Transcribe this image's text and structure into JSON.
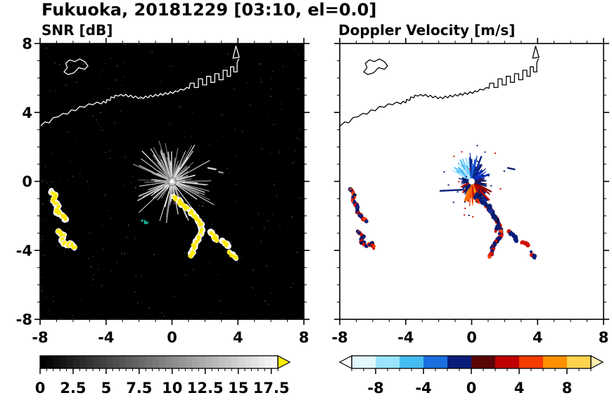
{
  "title": "Fukuoka, 20181229 [03:10, el=0.0]",
  "panels": {
    "snr": {
      "title": "SNR [dB]"
    },
    "doppler": {
      "title": "Doppler Velocity [m/s]"
    }
  },
  "axes": {
    "xlim": [
      -8,
      8
    ],
    "ylim": [
      -8,
      8
    ],
    "major_ticks": [
      -8,
      -4,
      0,
      4,
      8
    ],
    "tick_labels": [
      "-8",
      "-4",
      "0",
      "4",
      "8"
    ],
    "minor_step": 1
  },
  "map_overlay": {
    "coast_main": [
      [
        -8,
        3.2
      ],
      [
        -7.7,
        3.45
      ],
      [
        -7.45,
        3.4
      ],
      [
        -7.2,
        3.7
      ],
      [
        -6.9,
        3.75
      ],
      [
        -6.6,
        3.95
      ],
      [
        -6.35,
        3.9
      ],
      [
        -6.1,
        4.15
      ],
      [
        -5.85,
        4.1
      ],
      [
        -5.6,
        4.35
      ],
      [
        -5.3,
        4.3
      ],
      [
        -5.05,
        4.5
      ],
      [
        -4.8,
        4.45
      ],
      [
        -4.55,
        4.6
      ],
      [
        -4.3,
        4.5
      ],
      [
        -4.15,
        4.65
      ],
      [
        -4,
        4.55
      ],
      [
        -3.95,
        4.75
      ],
      [
        -3.75,
        4.7
      ],
      [
        -3.7,
        4.9
      ],
      [
        -3.5,
        4.85
      ],
      [
        -3.45,
        5
      ],
      [
        -3.25,
        4.95
      ],
      [
        -3.1,
        5.05
      ],
      [
        -2.95,
        4.95
      ],
      [
        -2.8,
        5.05
      ],
      [
        -2.65,
        4.9
      ],
      [
        -2.5,
        5
      ],
      [
        -2.35,
        4.85
      ],
      [
        -2.2,
        4.95
      ],
      [
        -2.05,
        4.8
      ],
      [
        -1.9,
        4.9
      ],
      [
        -1.75,
        4.8
      ],
      [
        -1.6,
        4.95
      ],
      [
        -1.45,
        4.85
      ],
      [
        -1.3,
        5
      ],
      [
        -1.15,
        4.9
      ],
      [
        -1,
        5.05
      ],
      [
        -0.85,
        4.95
      ],
      [
        -0.7,
        5.1
      ],
      [
        -0.55,
        5
      ],
      [
        -0.4,
        5.15
      ],
      [
        -0.25,
        5.05
      ],
      [
        -0.1,
        5.2
      ],
      [
        0.05,
        5.1
      ],
      [
        0.2,
        5.25
      ],
      [
        0.35,
        5.2
      ],
      [
        0.5,
        5.35
      ],
      [
        0.7,
        5.3
      ],
      [
        0.9,
        5.45
      ],
      [
        1.05,
        5.4
      ],
      [
        1.1,
        5.7
      ],
      [
        1.35,
        5.7
      ],
      [
        1.35,
        5.45
      ],
      [
        1.6,
        5.45
      ],
      [
        1.6,
        5.95
      ],
      [
        1.85,
        5.95
      ],
      [
        1.85,
        5.6
      ],
      [
        2.1,
        5.6
      ],
      [
        2.1,
        6.1
      ],
      [
        2.35,
        6.1
      ],
      [
        2.35,
        5.75
      ],
      [
        2.6,
        5.75
      ],
      [
        2.6,
        6.25
      ],
      [
        2.85,
        6.25
      ],
      [
        2.85,
        5.9
      ],
      [
        3.1,
        5.9
      ],
      [
        3.1,
        6.45
      ],
      [
        3.35,
        6.45
      ],
      [
        3.35,
        6.1
      ],
      [
        3.55,
        6.1
      ],
      [
        3.55,
        6.65
      ],
      [
        3.75,
        6.65
      ],
      [
        3.75,
        6.35
      ],
      [
        3.95,
        6.35
      ],
      [
        3.95,
        6.9
      ],
      [
        4.05,
        7.1
      ]
    ],
    "island": [
      [
        -6.55,
        6.35
      ],
      [
        -6.35,
        6.6
      ],
      [
        -6.45,
        6.85
      ],
      [
        -6.2,
        7.05
      ],
      [
        -5.9,
        6.95
      ],
      [
        -5.6,
        7.1
      ],
      [
        -5.3,
        6.95
      ],
      [
        -5.1,
        6.7
      ],
      [
        -5.3,
        6.5
      ],
      [
        -5.65,
        6.6
      ],
      [
        -5.95,
        6.3
      ],
      [
        -6.3,
        6.2
      ],
      [
        -6.55,
        6.35
      ]
    ],
    "spike": [
      [
        3.7,
        7.15
      ],
      [
        3.88,
        7.85
      ],
      [
        4.08,
        7.2
      ],
      [
        3.7,
        7.15
      ]
    ]
  },
  "echoes": [
    {
      "name": "west-arc-upper",
      "points": [
        [
          -7.35,
          -0.5
        ],
        [
          -7.1,
          -0.8
        ],
        [
          -7.2,
          -1.15
        ],
        [
          -6.9,
          -1.4
        ],
        [
          -7.0,
          -1.75
        ],
        [
          -6.7,
          -1.95
        ],
        [
          -6.45,
          -2.25
        ]
      ],
      "snr_style": "snr",
      "doppler_style": "mixed"
    },
    {
      "name": "west-arc-lower",
      "points": [
        [
          -6.9,
          -2.9
        ],
        [
          -6.6,
          -3.15
        ],
        [
          -6.7,
          -3.5
        ],
        [
          -6.4,
          -3.7
        ],
        [
          -6.1,
          -3.6
        ],
        [
          -5.9,
          -3.85
        ]
      ],
      "snr_style": "snr",
      "doppler_style": "mixed"
    },
    {
      "name": "south-arc-main",
      "points": [
        [
          0.15,
          -0.95
        ],
        [
          0.5,
          -1.2
        ],
        [
          0.85,
          -1.45
        ],
        [
          1.2,
          -1.8
        ],
        [
          1.5,
          -2.15
        ],
        [
          1.75,
          -2.55
        ],
        [
          1.8,
          -2.95
        ],
        [
          1.6,
          -3.35
        ],
        [
          1.35,
          -3.7
        ],
        [
          1.25,
          -4.1
        ],
        [
          1.1,
          -4.4
        ]
      ],
      "snr_style": "snr",
      "doppler_style": "mixed"
    },
    {
      "name": "south-piece-1",
      "points": [
        [
          2.3,
          -2.95
        ],
        [
          2.6,
          -3.2
        ],
        [
          2.75,
          -3.45
        ]
      ],
      "snr_style": "snr",
      "doppler_style": "mixed"
    },
    {
      "name": "south-piece-2",
      "points": [
        [
          3.1,
          -3.5
        ],
        [
          3.45,
          -3.75
        ]
      ],
      "snr_style": "snr",
      "doppler_style": "mixed"
    },
    {
      "name": "south-piece-3",
      "points": [
        [
          3.55,
          -4.15
        ],
        [
          3.85,
          -4.45
        ]
      ],
      "snr_style": "snr",
      "doppler_style": "mixed"
    },
    {
      "name": "small-echo",
      "points": [
        [
          -1.75,
          -2.3
        ],
        [
          -1.5,
          -2.42
        ]
      ],
      "snr_style": "teal",
      "doppler_style": "none"
    },
    {
      "name": "center-south-blob",
      "points": [
        [
          0.35,
          -0.75
        ],
        [
          0.7,
          -1.15
        ],
        [
          1.05,
          -1.55
        ],
        [
          1.35,
          -2.0
        ],
        [
          1.6,
          -2.45
        ],
        [
          1.5,
          -2.85
        ]
      ],
      "snr_style": "none",
      "doppler_style": "navy"
    }
  ],
  "chart_data": [
    {
      "id": "snr",
      "type": "heatmap",
      "title": "SNR [dB]",
      "units": "dB",
      "xlim": [
        -8,
        8
      ],
      "ylim": [
        -8,
        8
      ],
      "background": "#000000",
      "coast_color": "#ffffff",
      "show_y_labels": true,
      "radar_center": {
        "x": 0,
        "y": 0
      },
      "colorbar": {
        "style": "grayscale",
        "min": 0,
        "max": 18,
        "labels": [
          "0",
          "2.5",
          "5",
          "7.5",
          "10",
          "12.5",
          "15",
          "17.5"
        ],
        "values": [
          0,
          2.5,
          5,
          7.5,
          10,
          12.5,
          15,
          17.5
        ],
        "minor_step": 0.5,
        "over_arrow": "#ffee00"
      },
      "clutter": {
        "speckle": 260,
        "rays": 170,
        "ray_max_len": 2.4,
        "long_rays": [
          {
            "az": 25,
            "len": 1.9
          },
          {
            "az": 62,
            "len": 2.6
          },
          {
            "az": 95,
            "len": 2.2
          },
          {
            "az": 118,
            "len": 2.9
          },
          {
            "az": 142,
            "len": 2.1
          },
          {
            "az": 198,
            "len": 2.4
          },
          {
            "az": 228,
            "len": 2.7
          },
          {
            "az": 262,
            "len": 2.0
          },
          {
            "az": 305,
            "len": 2.3
          },
          {
            "az": 338,
            "len": 1.8
          }
        ]
      },
      "dashes": [
        {
          "x1": 2.2,
          "y1": 0.78,
          "x2": 2.65,
          "y2": 0.7,
          "color": "#cfcfcf"
        },
        {
          "x1": 2.85,
          "y1": 0.55,
          "x2": 3.08,
          "y2": 0.5,
          "color": "#9a9a9a"
        }
      ]
    },
    {
      "id": "doppler",
      "type": "heatmap",
      "title": "Doppler Velocity [m/s]",
      "units": "m/s",
      "xlim": [
        -8,
        8
      ],
      "ylim": [
        -8,
        8
      ],
      "background": "#ffffff",
      "coast_color": "#000000",
      "show_y_labels": false,
      "radar_center": {
        "x": 0,
        "y": 0
      },
      "colorbar": {
        "style": "segmented",
        "min": -10,
        "max": 10,
        "labels": [
          "-8",
          "-4",
          "0",
          "4",
          "8"
        ],
        "values": [
          -8,
          -4,
          0,
          4,
          8
        ],
        "minor_step": 1,
        "segments": [
          "#e2f8ff",
          "#9ae4ff",
          "#46bdf2",
          "#1a6ede",
          "#0a1d7a",
          "#5a0505",
          "#c00000",
          "#f53b00",
          "#ff9100",
          "#ffd34d"
        ],
        "under_arrow": "#ffffff",
        "over_arrow": "#ffedb0"
      },
      "fan_bands": [
        {
          "from": 295,
          "to": 355,
          "colors": [
            "#8fdcff",
            "#4ab7f2",
            "#1e90ff",
            "#bfeeff"
          ],
          "density": 0.9,
          "max_len": 1.3
        },
        {
          "from": 355,
          "to": 390,
          "colors": [
            "#1a5fd6",
            "#0a2fbf",
            "#06207f"
          ],
          "density": 0.95,
          "max_len": 1.6
        },
        {
          "from": 30,
          "to": 75,
          "colors": [
            "#081c6e",
            "#0a2fbf"
          ],
          "density": 0.7,
          "max_len": 1.1
        },
        {
          "from": 75,
          "to": 115,
          "colors": [
            "#081c6e",
            "#8b0000"
          ],
          "density": 0.5,
          "max_len": 0.9
        },
        {
          "from": 115,
          "to": 155,
          "colors": [
            "#8b0000",
            "#c00000",
            "#081c6e"
          ],
          "density": 0.8,
          "max_len": 1.4
        },
        {
          "from": 155,
          "to": 205,
          "colors": [
            "#e83200",
            "#ff6a00",
            "#c00000",
            "#ff9100"
          ],
          "density": 1.0,
          "max_len": 1.3
        },
        {
          "from": 205,
          "to": 250,
          "colors": [
            "#c00000",
            "#081c6e"
          ],
          "density": 0.35,
          "max_len": 0.8
        },
        {
          "from": 250,
          "to": 295,
          "colors": [
            "#081c6e"
          ],
          "density": 0.25,
          "max_len": 0.7
        }
      ],
      "specks": 30,
      "dashes": [
        {
          "x1": -1.9,
          "y1": -0.55,
          "x2": -0.5,
          "y2": -0.48,
          "color": "#0a1d7a"
        },
        {
          "x1": 2.2,
          "y1": 0.78,
          "x2": 2.6,
          "y2": 0.7,
          "color": "#081c6e"
        }
      ]
    }
  ]
}
